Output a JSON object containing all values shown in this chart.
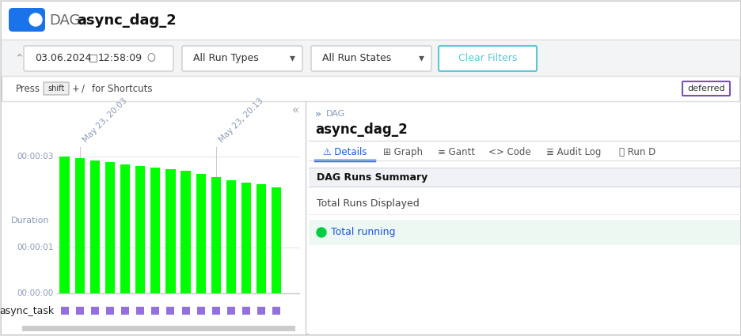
{
  "bg_color": "#f0f0f0",
  "panel_bg": "#ffffff",
  "dag_label": "DAG:",
  "dag_name": "async_dag_2",
  "date_str": "03.06.2024",
  "time_str": "12:58:09",
  "filter1": "All Run Types",
  "filter2": "All Run States",
  "clear_btn": "Clear Filters",
  "deferred_label": "deferred",
  "dag_title": "async_dag_2",
  "section_title": "DAG Runs Summary",
  "row1_label": "Total Runs Displayed",
  "row2_label": "Total running",
  "bar_values": [
    3.0,
    2.95,
    2.9,
    2.87,
    2.82,
    2.78,
    2.75,
    2.72,
    2.68,
    2.62,
    2.55,
    2.48,
    2.42,
    2.38,
    2.32
  ],
  "bar_color": "#00ff00",
  "task_label": "async_task",
  "task_squares_color": "#9370db",
  "ytick_labels": [
    "00:00:00",
    "00:00:01",
    "00:00:03"
  ],
  "ytick_values": [
    0,
    1,
    3
  ],
  "xlabel_left": "May 23, 20:03",
  "xlabel_right": "May 23, 20:13",
  "duration_label": "Duration",
  "axis_text_color": "#8a9bb5",
  "grid_color": "#e8ecf0",
  "toggle_color": "#1a73e8",
  "details_underline_color": "#1a56db",
  "running_dot_color": "#00cc44",
  "running_text_color": "#1a56db",
  "tab_details": "⚠ Details",
  "tab_graph": "⊞ Graph",
  "tab_gantt": "≡ Gantt",
  "tab_code": "<> Code",
  "tab_audit": "≣ Audit Log",
  "tab_run": "⌛ Run D"
}
